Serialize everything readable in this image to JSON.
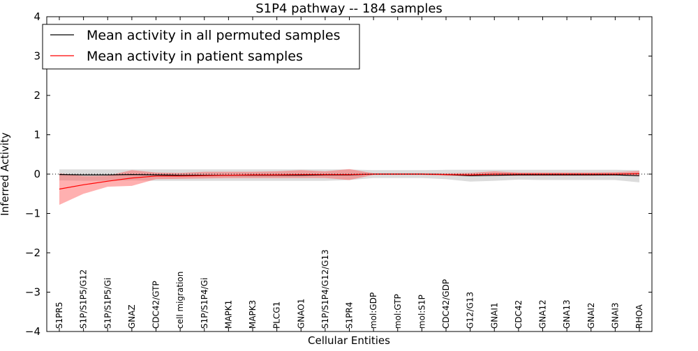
{
  "chart_data": {
    "type": "line",
    "title": "S1P4 pathway -- 184 samples",
    "xlabel": "Cellular Entities",
    "ylabel": "Inferred Activity",
    "ylim": [
      -4,
      4
    ],
    "yticks": [
      4,
      3,
      2,
      1,
      0,
      -1,
      -2,
      -3,
      -4
    ],
    "ytick_labels": [
      "4",
      "3",
      "2",
      "1",
      "0",
      "−1",
      "−2",
      "−3",
      "−4"
    ],
    "categories": [
      "S1PR5",
      "S1P/S1P5/G12",
      "S1P/S1P5/Gi",
      "GNAZ",
      "CDC42/GTP",
      "cell migration",
      "S1P/S1P4/Gi",
      "MAPK1",
      "MAPK3",
      "PLCG1",
      "GNAO1",
      "S1P/S1P4/G12/G13",
      "S1PR4",
      "mol:GDP",
      "mol:GTP",
      "mol:S1P",
      "CDC42/GDP",
      "G12/G13",
      "GNAI1",
      "CDC42",
      "GNA12",
      "GNA13",
      "GNAI2",
      "GNAI3",
      "RHOA"
    ],
    "legend": {
      "position": "top-left",
      "entries": [
        "Mean activity in all permuted samples",
        "Mean activity in patient samples"
      ]
    },
    "series": [
      {
        "name": "Mean activity in all permuted samples",
        "color": "#000000",
        "band_color": "#c0c0c0",
        "values": [
          -0.01,
          -0.02,
          -0.02,
          -0.01,
          -0.02,
          -0.03,
          -0.03,
          -0.03,
          -0.03,
          -0.03,
          -0.03,
          -0.02,
          -0.02,
          0.0,
          0.0,
          0.0,
          -0.01,
          -0.04,
          -0.03,
          -0.02,
          -0.02,
          -0.02,
          -0.02,
          -0.02,
          -0.04
        ],
        "lower": [
          -0.16,
          -0.17,
          -0.17,
          -0.16,
          -0.17,
          -0.17,
          -0.17,
          -0.17,
          -0.17,
          -0.17,
          -0.17,
          -0.17,
          -0.15,
          -0.1,
          -0.1,
          -0.1,
          -0.13,
          -0.19,
          -0.17,
          -0.14,
          -0.15,
          -0.15,
          -0.15,
          -0.15,
          -0.21
        ],
        "upper": [
          0.12,
          0.12,
          0.12,
          0.12,
          0.12,
          0.12,
          0.12,
          0.12,
          0.12,
          0.12,
          0.12,
          0.12,
          0.12,
          0.1,
          0.1,
          0.1,
          0.11,
          0.11,
          0.11,
          0.11,
          0.11,
          0.11,
          0.11,
          0.11,
          0.1
        ]
      },
      {
        "name": "Mean activity in patient samples",
        "color": "#ff0000",
        "band_color": "#ff5050",
        "values": [
          -0.38,
          -0.27,
          -0.18,
          -0.1,
          -0.05,
          -0.05,
          -0.04,
          -0.03,
          -0.02,
          -0.02,
          -0.01,
          -0.01,
          -0.01,
          0.0,
          0.0,
          0.0,
          -0.01,
          -0.02,
          0.0,
          0.0,
          0.0,
          0.0,
          0.0,
          0.0,
          0.01
        ],
        "lower": [
          -0.78,
          -0.5,
          -0.32,
          -0.3,
          -0.13,
          -0.12,
          -0.11,
          -0.1,
          -0.1,
          -0.1,
          -0.1,
          -0.1,
          -0.15,
          -0.02,
          -0.02,
          -0.02,
          -0.04,
          -0.05,
          -0.05,
          -0.04,
          -0.04,
          -0.04,
          -0.04,
          -0.03,
          -0.05
        ],
        "upper": [
          0.02,
          -0.05,
          -0.04,
          0.1,
          0.04,
          0.03,
          0.06,
          0.06,
          0.06,
          0.07,
          0.1,
          0.07,
          0.13,
          0.02,
          0.02,
          0.02,
          0.02,
          0.03,
          0.07,
          0.04,
          0.04,
          0.04,
          0.04,
          0.05,
          0.08
        ]
      }
    ]
  }
}
